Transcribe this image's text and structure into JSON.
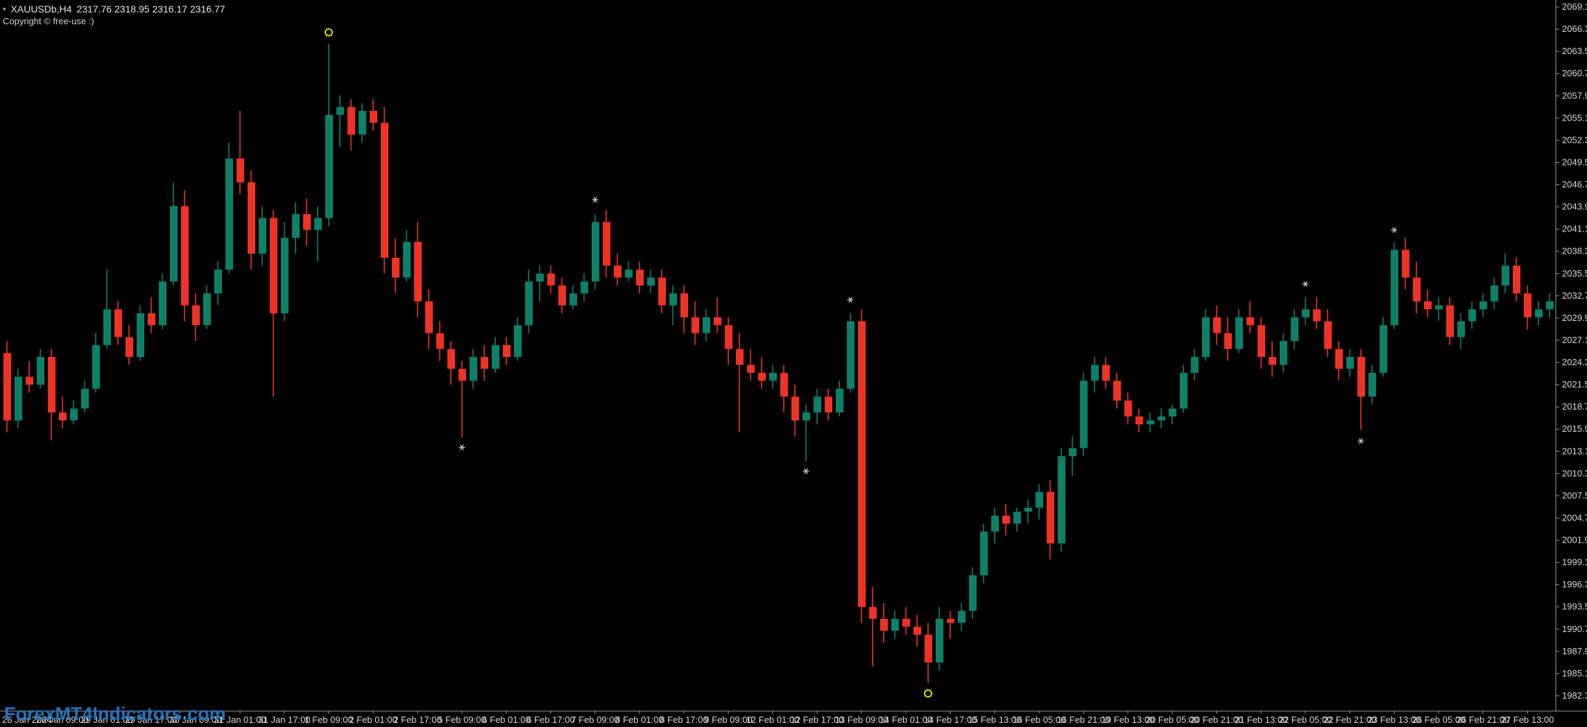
{
  "window": {
    "title_symbol": "XAUUSDb,H4",
    "title_ohlc": "2317.76 2318.95 2316.17 2316.77",
    "copyright": "Copyright © free-use :)",
    "watermark": "ForexMT4Indicators.com"
  },
  "colors": {
    "background": "#000000",
    "bull": "#0d8068",
    "bear": "#ee3326",
    "axis_text": "#d8d8d8",
    "axis_line": "#9a9a9a",
    "marker_circle": "#f0f000",
    "marker_star": "#c8c8c8",
    "watermark": "#1e73be",
    "title_text": "#e6e6e6"
  },
  "chart_data": {
    "type": "candlestick",
    "symbol": "XAUUSDb",
    "timeframe": "H4",
    "price_axis": {
      "step": 2.8,
      "labels": [
        "2069.10",
        "2066.30",
        "2063.50",
        "2060.70",
        "2057.90",
        "2055.10",
        "2052.30",
        "2049.50",
        "2046.70",
        "2043.90",
        "2041.10",
        "2038.30",
        "2035.50",
        "2032.70",
        "2029.90",
        "2027.10",
        "2024.30",
        "2021.50",
        "2018.70",
        "2015.90",
        "2013.10",
        "2010.30",
        "2007.50",
        "2004.70",
        "2001.90",
        "1999.10",
        "1996.30",
        "1993.50",
        "1990.70",
        "1987.90",
        "1985.10",
        "1982.30"
      ]
    },
    "time_axis": {
      "labels": [
        "26 Jan 2024",
        "26 Jan 09:00",
        "29 Jan 01:00",
        "29 Jan 17:00",
        "30 Jan 09:00",
        "31 Jan 01:00",
        "31 Jan 17:00",
        "1 Feb 09:00",
        "2 Feb 01:00",
        "2 Feb 17:00",
        "5 Feb 09:00",
        "6 Feb 01:00",
        "6 Feb 17:00",
        "7 Feb 09:00",
        "8 Feb 01:00",
        "8 Feb 17:00",
        "9 Feb 09:00",
        "12 Feb 01:00",
        "12 Feb 17:00",
        "13 Feb 09:00",
        "14 Feb 01:00",
        "14 Feb 17:00",
        "15 Feb 13:00",
        "16 Feb 05:00",
        "16 Feb 21:00",
        "19 Feb 13:00",
        "20 Feb 05:00",
        "20 Feb 21:00",
        "21 Feb 13:00",
        "22 Feb 05:00",
        "22 Feb 21:00",
        "23 Feb 13:00",
        "26 Feb 05:00",
        "26 Feb 21:00",
        "27 Feb 13:00"
      ]
    },
    "candles": [
      [
        2025.5,
        2027.0,
        2015.5,
        2017.0
      ],
      [
        2017.0,
        2023.5,
        2016.0,
        2022.5
      ],
      [
        2022.5,
        2024.5,
        2020.5,
        2021.5
      ],
      [
        2021.5,
        2026.0,
        2021.0,
        2025.0
      ],
      [
        2025.0,
        2026.0,
        2014.5,
        2018.0
      ],
      [
        2018.0,
        2020.0,
        2016.0,
        2017.0
      ],
      [
        2017.0,
        2019.5,
        2016.5,
        2018.5
      ],
      [
        2018.5,
        2022.0,
        2018.0,
        2021.0
      ],
      [
        2021.0,
        2028.0,
        2020.5,
        2026.5
      ],
      [
        2026.5,
        2036.0,
        2026.0,
        2031.0
      ],
      [
        2031.0,
        2032.0,
        2026.5,
        2027.5
      ],
      [
        2027.5,
        2029.0,
        2024.0,
        2025.0
      ],
      [
        2025.0,
        2031.5,
        2024.5,
        2030.5
      ],
      [
        2030.5,
        2032.5,
        2028.0,
        2029.0
      ],
      [
        2029.0,
        2035.5,
        2028.5,
        2034.5
      ],
      [
        2034.5,
        2047.0,
        2034.0,
        2044.0
      ],
      [
        2044.0,
        2046.0,
        2029.5,
        2031.5
      ],
      [
        2031.5,
        2033.0,
        2027.0,
        2029.0
      ],
      [
        2029.0,
        2034.0,
        2028.5,
        2033.0
      ],
      [
        2033.0,
        2037.0,
        2031.5,
        2036.0
      ],
      [
        2036.0,
        2052.0,
        2035.5,
        2050.0
      ],
      [
        2050.0,
        2056.0,
        2045.5,
        2047.0
      ],
      [
        2047.0,
        2048.5,
        2036.0,
        2038.0
      ],
      [
        2038.0,
        2044.0,
        2036.5,
        2042.5
      ],
      [
        2042.5,
        2043.5,
        2020.0,
        2030.5
      ],
      [
        2030.5,
        2042.0,
        2029.5,
        2040.0
      ],
      [
        2040.0,
        2044.5,
        2038.0,
        2043.0
      ],
      [
        2043.0,
        2045.0,
        2039.0,
        2041.0
      ],
      [
        2041.0,
        2044.0,
        2037.0,
        2042.5
      ],
      [
        2042.5,
        2064.5,
        2041.5,
        2055.5
      ],
      [
        2055.5,
        2058.0,
        2051.5,
        2056.5
      ],
      [
        2056.5,
        2057.5,
        2051.0,
        2053.0
      ],
      [
        2053.0,
        2057.0,
        2052.0,
        2056.0
      ],
      [
        2056.0,
        2057.5,
        2053.5,
        2054.5
      ],
      [
        2054.5,
        2056.5,
        2035.5,
        2037.5
      ],
      [
        2037.5,
        2040.0,
        2033.0,
        2035.0
      ],
      [
        2035.0,
        2041.0,
        2034.5,
        2039.5
      ],
      [
        2039.5,
        2042.0,
        2030.0,
        2032.0
      ],
      [
        2032.0,
        2033.5,
        2026.0,
        2028.0
      ],
      [
        2028.0,
        2029.5,
        2024.5,
        2026.0
      ],
      [
        2026.0,
        2027.0,
        2021.5,
        2023.5
      ],
      [
        2023.5,
        2024.5,
        2014.8,
        2022.0
      ],
      [
        2022.0,
        2026.0,
        2021.0,
        2025.0
      ],
      [
        2025.0,
        2026.5,
        2022.0,
        2023.5
      ],
      [
        2023.5,
        2027.5,
        2023.0,
        2026.5
      ],
      [
        2026.5,
        2027.5,
        2024.0,
        2025.0
      ],
      [
        2025.0,
        2030.0,
        2024.5,
        2029.0
      ],
      [
        2029.0,
        2036.0,
        2028.0,
        2034.5
      ],
      [
        2034.5,
        2036.5,
        2032.0,
        2035.5
      ],
      [
        2035.5,
        2036.5,
        2033.0,
        2034.0
      ],
      [
        2034.0,
        2035.0,
        2030.5,
        2031.5
      ],
      [
        2031.5,
        2034.0,
        2031.0,
        2033.0
      ],
      [
        2033.0,
        2035.5,
        2032.0,
        2034.5
      ],
      [
        2034.5,
        2043.0,
        2033.5,
        2042.0
      ],
      [
        2042.0,
        2043.5,
        2035.0,
        2036.5
      ],
      [
        2036.5,
        2038.0,
        2034.0,
        2035.0
      ],
      [
        2035.0,
        2037.0,
        2034.5,
        2036.0
      ],
      [
        2036.0,
        2037.0,
        2033.0,
        2034.0
      ],
      [
        2034.0,
        2036.0,
        2033.0,
        2035.0
      ],
      [
        2035.0,
        2036.0,
        2030.5,
        2031.5
      ],
      [
        2031.5,
        2034.0,
        2029.0,
        2033.0
      ],
      [
        2033.0,
        2034.0,
        2028.0,
        2030.0
      ],
      [
        2030.0,
        2032.0,
        2026.5,
        2028.0
      ],
      [
        2028.0,
        2031.0,
        2027.0,
        2030.0
      ],
      [
        2030.0,
        2032.5,
        2028.0,
        2029.0
      ],
      [
        2029.0,
        2030.0,
        2024.0,
        2026.0
      ],
      [
        2026.0,
        2028.0,
        2015.5,
        2024.0
      ],
      [
        2024.0,
        2026.0,
        2022.0,
        2023.0
      ],
      [
        2023.0,
        2025.0,
        2021.0,
        2022.0
      ],
      [
        2022.0,
        2024.0,
        2021.0,
        2023.0
      ],
      [
        2023.0,
        2024.0,
        2018.0,
        2020.0
      ],
      [
        2020.0,
        2021.5,
        2015.0,
        2017.0
      ],
      [
        2017.0,
        2019.0,
        2011.8,
        2018.0
      ],
      [
        2018.0,
        2021.0,
        2016.5,
        2020.0
      ],
      [
        2020.0,
        2021.0,
        2017.0,
        2018.0
      ],
      [
        2018.0,
        2022.0,
        2017.5,
        2021.0
      ],
      [
        2021.0,
        2030.5,
        2020.5,
        2029.5
      ],
      [
        2029.5,
        2031.0,
        1991.5,
        1993.5
      ],
      [
        1993.5,
        1996.0,
        1986.0,
        1992.0
      ],
      [
        1992.0,
        1994.0,
        1989.0,
        1990.5
      ],
      [
        1990.5,
        1993.0,
        1989.5,
        1992.0
      ],
      [
        1992.0,
        1993.5,
        1990.0,
        1991.0
      ],
      [
        1991.0,
        1992.5,
        1988.5,
        1990.0
      ],
      [
        1990.0,
        1991.5,
        1983.9,
        1986.5
      ],
      [
        1986.5,
        1993.5,
        1985.5,
        1992.0
      ],
      [
        1992.0,
        1993.0,
        1989.5,
        1991.5
      ],
      [
        1991.5,
        1994.0,
        1990.5,
        1993.0
      ],
      [
        1993.0,
        1998.5,
        1992.0,
        1997.5
      ],
      [
        1997.5,
        2004.0,
        1996.5,
        2003.0
      ],
      [
        2003.0,
        2006.0,
        2001.5,
        2005.0
      ],
      [
        2005.0,
        2006.5,
        2002.5,
        2004.0
      ],
      [
        2004.0,
        2006.0,
        2003.0,
        2005.5
      ],
      [
        2005.5,
        2007.0,
        2004.0,
        2006.0
      ],
      [
        2006.0,
        2009.0,
        2004.5,
        2008.0
      ],
      [
        2008.0,
        2009.5,
        1999.5,
        2001.5
      ],
      [
        2001.5,
        2013.5,
        2000.5,
        2012.5
      ],
      [
        2012.5,
        2015.0,
        2010.0,
        2013.5
      ],
      [
        2013.5,
        2023.0,
        2012.5,
        2022.0
      ],
      [
        2022.0,
        2025.0,
        2020.5,
        2024.0
      ],
      [
        2024.0,
        2025.0,
        2021.0,
        2022.0
      ],
      [
        2022.0,
        2023.0,
        2018.5,
        2019.5
      ],
      [
        2019.5,
        2020.5,
        2016.5,
        2017.5
      ],
      [
        2017.5,
        2018.5,
        2015.5,
        2016.5
      ],
      [
        2016.5,
        2018.0,
        2015.5,
        2017.0
      ],
      [
        2017.0,
        2018.5,
        2016.0,
        2017.5
      ],
      [
        2017.5,
        2019.0,
        2016.5,
        2018.5
      ],
      [
        2018.5,
        2024.0,
        2018.0,
        2023.0
      ],
      [
        2023.0,
        2026.0,
        2022.0,
        2025.0
      ],
      [
        2025.0,
        2031.0,
        2024.5,
        2030.0
      ],
      [
        2030.0,
        2031.5,
        2026.5,
        2028.0
      ],
      [
        2028.0,
        2030.0,
        2024.5,
        2026.0
      ],
      [
        2026.0,
        2031.0,
        2025.5,
        2030.0
      ],
      [
        2030.0,
        2032.0,
        2028.0,
        2029.0
      ],
      [
        2029.0,
        2030.0,
        2023.5,
        2025.0
      ],
      [
        2025.0,
        2027.0,
        2022.5,
        2024.0
      ],
      [
        2024.0,
        2028.0,
        2023.0,
        2027.0
      ],
      [
        2027.0,
        2031.0,
        2026.0,
        2030.0
      ],
      [
        2030.0,
        2032.5,
        2029.0,
        2031.0
      ],
      [
        2031.0,
        2032.5,
        2028.5,
        2029.5
      ],
      [
        2029.5,
        2031.0,
        2025.0,
        2026.0
      ],
      [
        2026.0,
        2027.0,
        2022.0,
        2023.5
      ],
      [
        2023.5,
        2026.0,
        2022.5,
        2025.0
      ],
      [
        2025.0,
        2026.0,
        2015.8,
        2020.0
      ],
      [
        2020.0,
        2024.0,
        2019.0,
        2023.0
      ],
      [
        2023.0,
        2030.0,
        2022.5,
        2029.0
      ],
      [
        2029.0,
        2039.5,
        2028.5,
        2038.5
      ],
      [
        2038.5,
        2040.0,
        2033.5,
        2035.0
      ],
      [
        2035.0,
        2037.0,
        2030.5,
        2032.0
      ],
      [
        2032.0,
        2033.5,
        2030.0,
        2031.0
      ],
      [
        2031.0,
        2032.5,
        2029.5,
        2031.5
      ],
      [
        2031.5,
        2032.5,
        2026.5,
        2027.5
      ],
      [
        2027.5,
        2030.5,
        2026.0,
        2029.5
      ],
      [
        2029.5,
        2032.0,
        2028.5,
        2031.0
      ],
      [
        2031.0,
        2033.0,
        2030.0,
        2032.0
      ],
      [
        2032.0,
        2035.0,
        2031.0,
        2034.0
      ],
      [
        2034.0,
        2038.0,
        2033.0,
        2036.5
      ],
      [
        2036.5,
        2037.5,
        2032.0,
        2033.0
      ],
      [
        2033.0,
        2034.0,
        2028.5,
        2030.0
      ],
      [
        2030.0,
        2032.0,
        2029.0,
        2031.0
      ],
      [
        2031.0,
        2033.0,
        2030.0,
        2032.0
      ]
    ],
    "markers": [
      {
        "bar": 29,
        "price": 2065.9,
        "type": "circle",
        "position": "above"
      },
      {
        "bar": 41,
        "price": 2013.6,
        "type": "star",
        "position": "below"
      },
      {
        "bar": 53,
        "price": 2044.8,
        "type": "star",
        "position": "above"
      },
      {
        "bar": 72,
        "price": 2010.6,
        "type": "star",
        "position": "below"
      },
      {
        "bar": 76,
        "price": 2032.2,
        "type": "star",
        "position": "above"
      },
      {
        "bar": 83,
        "price": 1982.6,
        "type": "circle",
        "position": "below"
      },
      {
        "bar": 117,
        "price": 2034.2,
        "type": "star",
        "position": "above"
      },
      {
        "bar": 122,
        "price": 2014.4,
        "type": "star",
        "position": "below"
      },
      {
        "bar": 125,
        "price": 2041.0,
        "type": "star",
        "position": "above"
      }
    ]
  }
}
